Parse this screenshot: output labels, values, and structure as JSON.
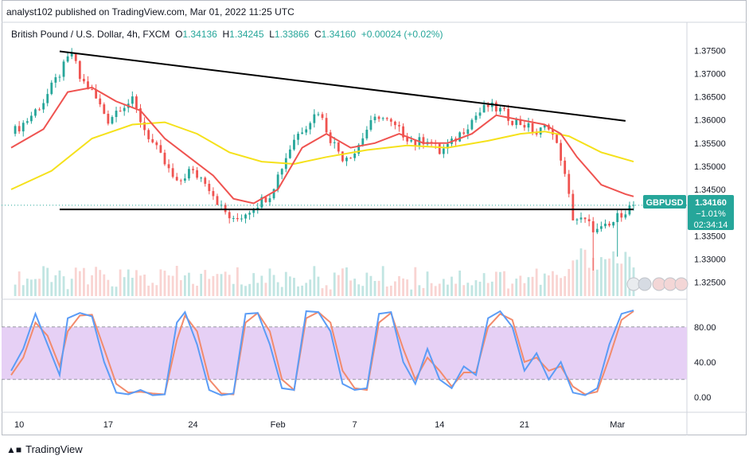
{
  "header": {
    "published_by": "analyst102 published on TradingView.com, Mar 01, 2022 11:25 UTC"
  },
  "legend": {
    "symbol": "British Pound / U.S. Dollar, 4h, FXCM",
    "o_label": "O",
    "o_value": "1.34136",
    "h_label": "H",
    "h_value": "1.34245",
    "l_label": "L",
    "l_value": "1.33866",
    "c_label": "C",
    "c_value": "1.34160",
    "change": "+0.00024 (+0.02%)"
  },
  "price_tag": {
    "ticker": "GBPUSD",
    "price": "1.34160",
    "change_pct": "−1.01%",
    "countdown": "02:34:14"
  },
  "footer": {
    "brand": "TradingView"
  },
  "colors": {
    "up": "#26a69a",
    "down": "#ef5350",
    "ma_fast": "#ef5350",
    "ma_slow": "#f5e11b",
    "stoch_k": "#5b9cf6",
    "stoch_d": "#f28b6d",
    "stoch_band": "#e6d0f5",
    "trendline": "#000000",
    "tag_bg": "#26a69a"
  },
  "chart_data": [
    {
      "type": "candlestick",
      "title": "British Pound / U.S. Dollar, 4h, FXCM",
      "x_ticks": [
        "10",
        "17",
        "24",
        "Feb",
        "7",
        "14",
        "21",
        "Mar"
      ],
      "y_ticks": [
        "1.37500",
        "1.37000",
        "1.36500",
        "1.36000",
        "1.35500",
        "1.35000",
        "1.34500",
        "1.33500",
        "1.33000",
        "1.32500"
      ],
      "ylim": [
        1.322,
        1.379
      ],
      "close_path": [
        [
          0,
          1.357
        ],
        [
          4,
          1.36
        ],
        [
          8,
          1.364
        ],
        [
          12,
          1.37
        ],
        [
          15,
          1.3745
        ],
        [
          17,
          1.369
        ],
        [
          20,
          1.366
        ],
        [
          24,
          1.36
        ],
        [
          27,
          1.363
        ],
        [
          30,
          1.364
        ],
        [
          33,
          1.358
        ],
        [
          37,
          1.352
        ],
        [
          41,
          1.346
        ],
        [
          44,
          1.349
        ],
        [
          48,
          1.347
        ],
        [
          52,
          1.341
        ],
        [
          55,
          1.338
        ],
        [
          58,
          1.34
        ],
        [
          61,
          1.342
        ],
        [
          64,
          1.344
        ],
        [
          67,
          1.35
        ],
        [
          70,
          1.356
        ],
        [
          73,
          1.359
        ],
        [
          76,
          1.362
        ],
        [
          79,
          1.356
        ],
        [
          82,
          1.352
        ],
        [
          85,
          1.353
        ],
        [
          88,
          1.358
        ],
        [
          91,
          1.361
        ],
        [
          94,
          1.359
        ],
        [
          97,
          1.357
        ],
        [
          100,
          1.355
        ],
        [
          103,
          1.356
        ],
        [
          106,
          1.353
        ],
        [
          109,
          1.355
        ],
        [
          112,
          1.358
        ],
        [
          115,
          1.361
        ],
        [
          118,
          1.363
        ],
        [
          121,
          1.362
        ],
        [
          124,
          1.36
        ],
        [
          127,
          1.359
        ],
        [
          130,
          1.357
        ],
        [
          133,
          1.359
        ],
        [
          136,
          1.352
        ],
        [
          139,
          1.339
        ],
        [
          142,
          1.338
        ],
        [
          145,
          1.336
        ],
        [
          148,
          1.337
        ],
        [
          151,
          1.34
        ],
        [
          154,
          1.3416
        ]
      ],
      "lows_marked": [
        [
          144,
          1.3275
        ],
        [
          150,
          1.3305
        ]
      ],
      "ma_fast": [
        [
          0,
          1.354
        ],
        [
          8,
          1.358
        ],
        [
          14,
          1.366
        ],
        [
          20,
          1.367
        ],
        [
          26,
          1.364
        ],
        [
          32,
          1.362
        ],
        [
          38,
          1.356
        ],
        [
          44,
          1.352
        ],
        [
          50,
          1.348
        ],
        [
          55,
          1.343
        ],
        [
          60,
          1.342
        ],
        [
          66,
          1.345
        ],
        [
          72,
          1.354
        ],
        [
          78,
          1.357
        ],
        [
          84,
          1.354
        ],
        [
          90,
          1.355
        ],
        [
          96,
          1.357
        ],
        [
          102,
          1.355
        ],
        [
          108,
          1.355
        ],
        [
          114,
          1.357
        ],
        [
          120,
          1.361
        ],
        [
          126,
          1.36
        ],
        [
          132,
          1.359
        ],
        [
          136,
          1.357
        ],
        [
          140,
          1.352
        ],
        [
          146,
          1.346
        ],
        [
          152,
          1.344
        ],
        [
          154,
          1.3435
        ]
      ],
      "ma_slow": [
        [
          0,
          1.345
        ],
        [
          10,
          1.349
        ],
        [
          20,
          1.356
        ],
        [
          30,
          1.359
        ],
        [
          38,
          1.3595
        ],
        [
          46,
          1.357
        ],
        [
          54,
          1.353
        ],
        [
          62,
          1.351
        ],
        [
          70,
          1.3505
        ],
        [
          78,
          1.352
        ],
        [
          88,
          1.3535
        ],
        [
          98,
          1.3545
        ],
        [
          108,
          1.354
        ],
        [
          118,
          1.3555
        ],
        [
          126,
          1.357
        ],
        [
          132,
          1.3575
        ],
        [
          138,
          1.3565
        ],
        [
          146,
          1.353
        ],
        [
          154,
          1.351
        ]
      ],
      "trendlines": [
        {
          "from": [
            12,
            1.3748
          ],
          "to": [
            152,
            1.3598
          ]
        },
        {
          "from": [
            12,
            1.3407
          ],
          "to": [
            154,
            1.3407
          ]
        }
      ]
    },
    {
      "type": "line",
      "title": "",
      "y_ticks": [
        "80.00",
        "40.00",
        "0.00"
      ],
      "ylim": [
        -12,
        108
      ],
      "band": [
        20,
        80
      ],
      "stoch_k": [
        [
          0,
          30
        ],
        [
          3,
          55
        ],
        [
          6,
          95
        ],
        [
          9,
          60
        ],
        [
          12,
          25
        ],
        [
          14,
          90
        ],
        [
          17,
          96
        ],
        [
          20,
          92
        ],
        [
          23,
          40
        ],
        [
          26,
          5
        ],
        [
          29,
          3
        ],
        [
          32,
          8
        ],
        [
          35,
          2
        ],
        [
          38,
          3
        ],
        [
          41,
          85
        ],
        [
          43,
          97
        ],
        [
          46,
          60
        ],
        [
          49,
          8
        ],
        [
          52,
          2
        ],
        [
          55,
          4
        ],
        [
          58,
          95
        ],
        [
          61,
          96
        ],
        [
          64,
          60
        ],
        [
          67,
          10
        ],
        [
          70,
          8
        ],
        [
          73,
          98
        ],
        [
          76,
          97
        ],
        [
          79,
          75
        ],
        [
          82,
          15
        ],
        [
          85,
          8
        ],
        [
          88,
          10
        ],
        [
          91,
          95
        ],
        [
          94,
          97
        ],
        [
          97,
          40
        ],
        [
          100,
          15
        ],
        [
          103,
          55
        ],
        [
          106,
          20
        ],
        [
          109,
          10
        ],
        [
          112,
          35
        ],
        [
          115,
          25
        ],
        [
          118,
          90
        ],
        [
          121,
          98
        ],
        [
          124,
          80
        ],
        [
          127,
          30
        ],
        [
          130,
          50
        ],
        [
          133,
          20
        ],
        [
          136,
          40
        ],
        [
          139,
          5
        ],
        [
          142,
          2
        ],
        [
          145,
          10
        ],
        [
          148,
          60
        ],
        [
          151,
          95
        ],
        [
          154,
          99
        ]
      ],
      "stoch_d": [
        [
          0,
          25
        ],
        [
          3,
          45
        ],
        [
          6,
          85
        ],
        [
          9,
          70
        ],
        [
          12,
          35
        ],
        [
          14,
          75
        ],
        [
          17,
          93
        ],
        [
          20,
          94
        ],
        [
          23,
          55
        ],
        [
          26,
          15
        ],
        [
          29,
          5
        ],
        [
          32,
          6
        ],
        [
          35,
          4
        ],
        [
          38,
          3
        ],
        [
          41,
          65
        ],
        [
          43,
          93
        ],
        [
          46,
          75
        ],
        [
          49,
          20
        ],
        [
          52,
          4
        ],
        [
          55,
          3
        ],
        [
          58,
          85
        ],
        [
          61,
          96
        ],
        [
          64,
          75
        ],
        [
          67,
          20
        ],
        [
          70,
          8
        ],
        [
          73,
          90
        ],
        [
          76,
          97
        ],
        [
          79,
          85
        ],
        [
          82,
          30
        ],
        [
          85,
          10
        ],
        [
          88,
          8
        ],
        [
          91,
          85
        ],
        [
          94,
          96
        ],
        [
          97,
          55
        ],
        [
          100,
          20
        ],
        [
          103,
          45
        ],
        [
          106,
          30
        ],
        [
          109,
          12
        ],
        [
          112,
          28
        ],
        [
          115,
          28
        ],
        [
          118,
          80
        ],
        [
          121,
          95
        ],
        [
          124,
          88
        ],
        [
          127,
          40
        ],
        [
          130,
          45
        ],
        [
          133,
          30
        ],
        [
          136,
          35
        ],
        [
          139,
          12
        ],
        [
          142,
          3
        ],
        [
          145,
          6
        ],
        [
          148,
          45
        ],
        [
          151,
          88
        ],
        [
          154,
          98
        ]
      ]
    }
  ]
}
